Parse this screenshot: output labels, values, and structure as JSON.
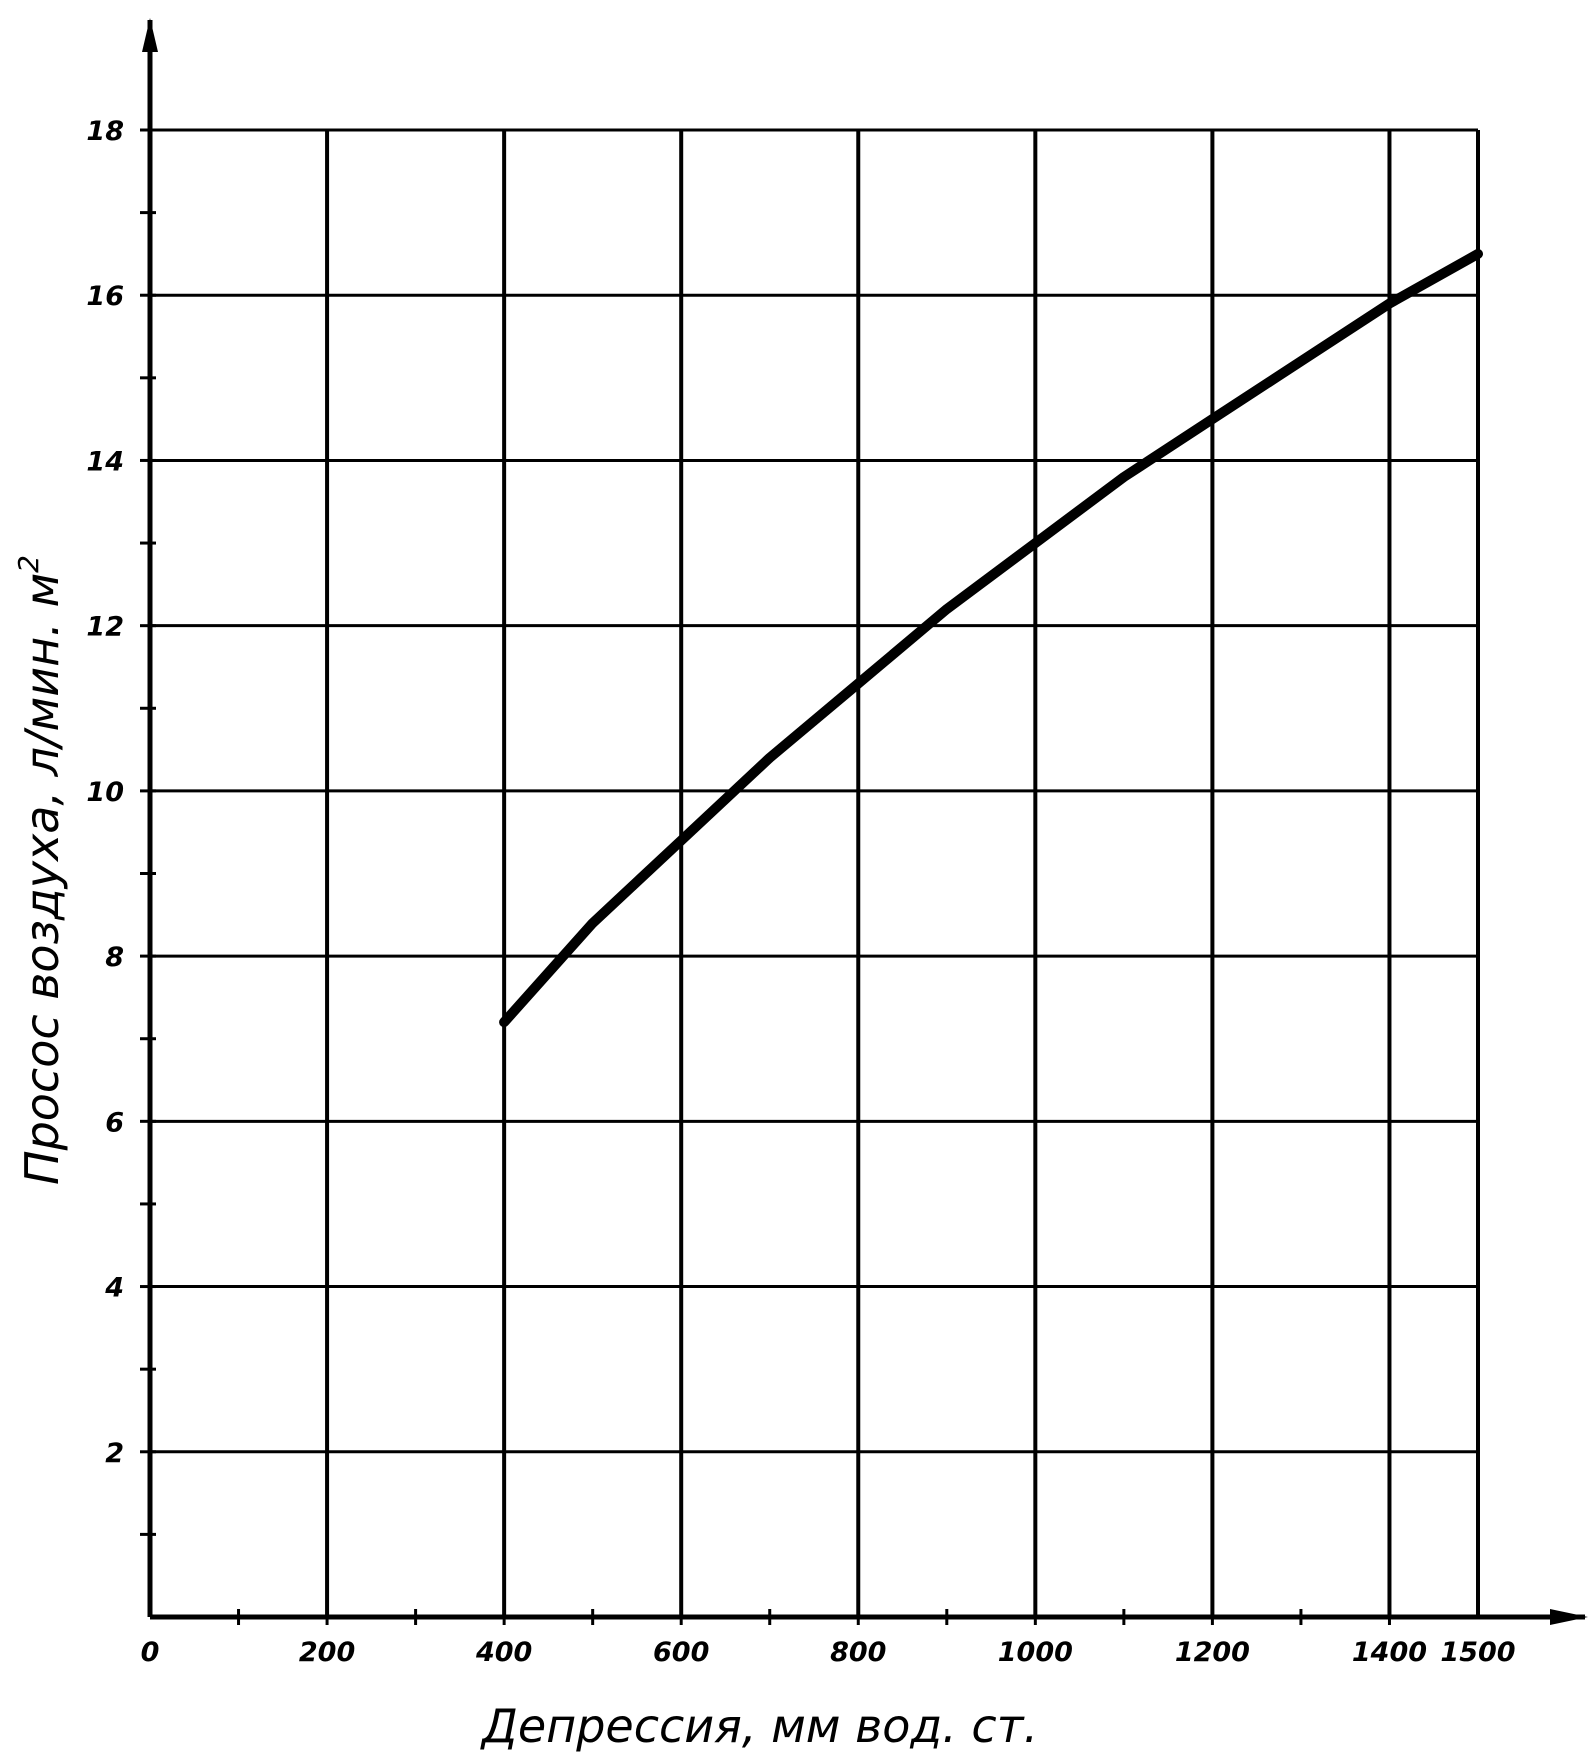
{
  "chart_data": {
    "type": "line",
    "title": "",
    "xlabel": "Депрессия,   мм вод. ст.",
    "ylabel": "Просос воздуха,  л/мин. м",
    "ylabel_sup": "2",
    "xlim": [
      0,
      1500
    ],
    "ylim": [
      0,
      18
    ],
    "grid": true,
    "x_tick_labels": [
      {
        "value": 0,
        "label": "0"
      },
      {
        "value": 200,
        "label": "200"
      },
      {
        "value": 400,
        "label": "400"
      },
      {
        "value": 600,
        "label": "600"
      },
      {
        "value": 800,
        "label": "800"
      },
      {
        "value": 1000,
        "label": "1000"
      },
      {
        "value": 1200,
        "label": "1200"
      },
      {
        "value": 1400,
        "label": "1400"
      },
      {
        "value": 1500,
        "label": "1500"
      }
    ],
    "y_tick_labels": [
      {
        "value": 2,
        "label": "2"
      },
      {
        "value": 4,
        "label": "4"
      },
      {
        "value": 6,
        "label": "6"
      },
      {
        "value": 8,
        "label": "8"
      },
      {
        "value": 10,
        "label": "10"
      },
      {
        "value": 12,
        "label": "12"
      },
      {
        "value": 14,
        "label": "14"
      },
      {
        "value": 16,
        "label": "16"
      },
      {
        "value": 18,
        "label": "18"
      }
    ],
    "series": [
      {
        "x": [
          400,
          500,
          600,
          700,
          800,
          900,
          1000,
          1100,
          1200,
          1300,
          1400,
          1500
        ],
        "y": [
          7.2,
          8.4,
          9.4,
          10.4,
          11.3,
          12.2,
          13.0,
          13.8,
          14.5,
          15.2,
          15.9,
          16.5
        ]
      }
    ]
  }
}
